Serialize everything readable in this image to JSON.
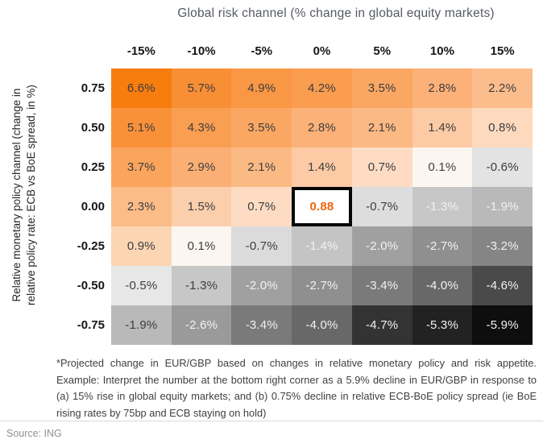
{
  "header": {
    "title": "Global risk channel (% change in global equity markets)"
  },
  "y_axis": {
    "lines": [
      "Relative monetary policy channel (change in",
      "relative policy rate: ECB vs BoE spread, in %)"
    ]
  },
  "footnote": "*Projected change in EUR/GBP based on changes in relative monetary policy and risk appetite. Example: Interpret the number at the bottom right corner as a 5.9% decline in EUR/GBP in response to (a) 15% rise in global equity markets; and (b) 0.75% decline in relative ECB-BoE policy spread (ie BoE rising rates by 75bp and ECB staying on hold)",
  "source": "Source: ING",
  "colors": {
    "accent_orange": "#F2640C",
    "text_dark": "#3D3D40",
    "text_light": "#F2F2F2",
    "highlight_border": "#050505",
    "highlight_bg": "#FFFFFF",
    "divider": "#D9D9D9"
  },
  "chart_data": {
    "type": "heatmap",
    "title": "Global risk channel (% change in global equity markets)",
    "xlabel": "Global risk channel (% change in global equity markets)",
    "ylabel": "Relative monetary policy channel (change in relative policy rate: ECB vs BoE spread, in %)",
    "columns": [
      "-15%",
      "-10%",
      "-5%",
      "0%",
      "5%",
      "10%",
      "15%"
    ],
    "row_labels": [
      "0.75",
      "0.50",
      "0.25",
      "0.00",
      "-0.25",
      "-0.50",
      "-0.75"
    ],
    "values": [
      [
        6.6,
        5.7,
        4.9,
        4.2,
        3.5,
        2.8,
        2.2
      ],
      [
        5.1,
        4.3,
        3.5,
        2.8,
        2.1,
        1.4,
        0.8
      ],
      [
        3.7,
        2.9,
        2.1,
        1.4,
        0.7,
        0.1,
        -0.6
      ],
      [
        2.3,
        1.5,
        0.7,
        0.88,
        -0.7,
        -1.3,
        -1.9
      ],
      [
        0.9,
        0.1,
        -0.7,
        -1.4,
        -2.0,
        -2.7,
        -3.2
      ],
      [
        -0.5,
        -1.3,
        -2.0,
        -2.7,
        -3.4,
        -4.0,
        -4.6
      ],
      [
        -1.9,
        -2.6,
        -3.4,
        -4.0,
        -4.7,
        -5.3,
        -5.9
      ]
    ],
    "labels": [
      [
        "6.6%",
        "5.7%",
        "4.9%",
        "4.2%",
        "3.5%",
        "2.8%",
        "2.2%"
      ],
      [
        "5.1%",
        "4.3%",
        "3.5%",
        "2.8%",
        "2.1%",
        "1.4%",
        "0.8%"
      ],
      [
        "3.7%",
        "2.9%",
        "2.1%",
        "1.4%",
        "0.7%",
        "0.1%",
        "-0.6%"
      ],
      [
        "2.3%",
        "1.5%",
        "0.7%",
        "0.88",
        "-0.7%",
        "-1.3%",
        "-1.9%"
      ],
      [
        "0.9%",
        "0.1%",
        "-0.7%",
        "-1.4%",
        "-2.0%",
        "-2.7%",
        "-3.2%"
      ],
      [
        "-0.5%",
        "-1.3%",
        "-2.0%",
        "-2.7%",
        "-3.4%",
        "-4.0%",
        "-4.6%"
      ],
      [
        "-1.9%",
        "-2.6%",
        "-3.4%",
        "-4.0%",
        "-4.7%",
        "-5.3%",
        "-5.9%"
      ]
    ],
    "cell_colors": [
      [
        "#F87D0F",
        "#F98F35",
        "#F99745",
        "#FA9D4F",
        "#FAA763",
        "#FBB178",
        "#FBBD8C"
      ],
      [
        "#F99139",
        "#FA9E52",
        "#FAA763",
        "#FBB178",
        "#FBB983",
        "#FCCAA4",
        "#FDD9BD"
      ],
      [
        "#FAA45C",
        "#FBAF74",
        "#FBB983",
        "#FCCAA4",
        "#FDDCC3",
        "#FCF6F0",
        "#E3E3E3"
      ],
      [
        "#FBBC88",
        "#FCCFAC",
        "#FDDCC3",
        "#FFFFFF",
        "#DDDDDD",
        "#C7C7C7",
        "#B9B9B9"
      ],
      [
        "#FCD6B3",
        "#FCF6F0",
        "#DBDBDB",
        "#C4C4C4",
        "#A0A0A0",
        "#8F8F8F",
        "#858585"
      ],
      [
        "#E7E7E7",
        "#C7C7C7",
        "#A0A0A0",
        "#8F8F8F",
        "#7A7A7A",
        "#686868",
        "#4A4A4A"
      ],
      [
        "#B9B9B9",
        "#9A9A9A",
        "#7A7A7A",
        "#686868",
        "#333333",
        "#222222",
        "#0E0E0E"
      ]
    ],
    "light_text": [
      [
        0,
        0,
        0,
        0,
        0,
        0,
        0
      ],
      [
        0,
        0,
        0,
        0,
        0,
        0,
        0
      ],
      [
        0,
        0,
        0,
        0,
        0,
        0,
        0
      ],
      [
        0,
        0,
        0,
        0,
        0,
        1,
        1
      ],
      [
        0,
        0,
        0,
        1,
        1,
        1,
        1
      ],
      [
        0,
        0,
        1,
        1,
        1,
        1,
        1
      ],
      [
        0,
        1,
        1,
        1,
        1,
        1,
        1
      ]
    ],
    "highlight": {
      "row": 3,
      "col": 3,
      "label": "0.88"
    }
  }
}
